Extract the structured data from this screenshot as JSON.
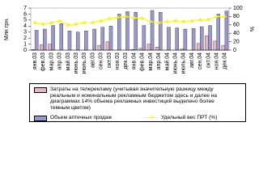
{
  "chart_data": {
    "type": "bar-line",
    "categories": [
      "янв.03",
      "фев.03",
      "мар.03",
      "апр.03",
      "май.03",
      "июнь.03",
      "июль.03",
      "авг.03",
      "сен.03",
      "окт.03",
      "ноя.03",
      "дек.03",
      "янв.04",
      "фев.04",
      "мар.04",
      "апр.04",
      "май.04",
      "июнь.04",
      "июль.04",
      "авг.04",
      "сен.04",
      "окт.04",
      "ноя.04",
      "дек.04"
    ],
    "y_label": "Млн грн.",
    "y2_label": "%",
    "ylim": [
      0,
      7
    ],
    "yticks": [
      0,
      1,
      2,
      3,
      4,
      5,
      6,
      7
    ],
    "y2lim": [
      0,
      100
    ],
    "y2ticks": [
      0,
      20,
      40,
      60,
      80,
      100
    ],
    "series": [
      {
        "name": "Затраты на телерекламу (учитывая значительную разницу между реальным и номинальным рекламным бюджетом здесь и далее на диаграммах 14% объема рекламных инвестиций выделено более темным цветом)",
        "color": "#e8b4c8",
        "kind": "bar",
        "values": [
          0.1,
          0.9,
          1.0,
          0,
          0,
          0,
          0,
          0,
          0.8,
          1.4,
          0,
          0,
          0.1,
          0.3,
          1.0,
          0.5,
          0,
          0,
          0.2,
          0,
          1.1,
          2.4,
          1.5,
          0.8
        ]
      },
      {
        "name": "Объем аптечных продаж",
        "color": "#9999cc",
        "kind": "bar",
        "values": [
          3.3,
          3.5,
          4.1,
          4.4,
          3.2,
          3.0,
          3.2,
          3.5,
          3.8,
          4.0,
          6.0,
          6.4,
          6.3,
          4.1,
          6.6,
          6.3,
          3.8,
          3.7,
          3.5,
          3.6,
          3.9,
          4.1,
          6.0,
          6.5
        ]
      },
      {
        "name": "Удельный вес ПРТ (%)",
        "color": "#ffff00",
        "kind": "line",
        "axis": "y2",
        "values": [
          66,
          62,
          65,
          70,
          60,
          62,
          66,
          66,
          70,
          75,
          78,
          80,
          77,
          76,
          68,
          65,
          68,
          70,
          68,
          70,
          72,
          73,
          80,
          80
        ]
      }
    ]
  }
}
